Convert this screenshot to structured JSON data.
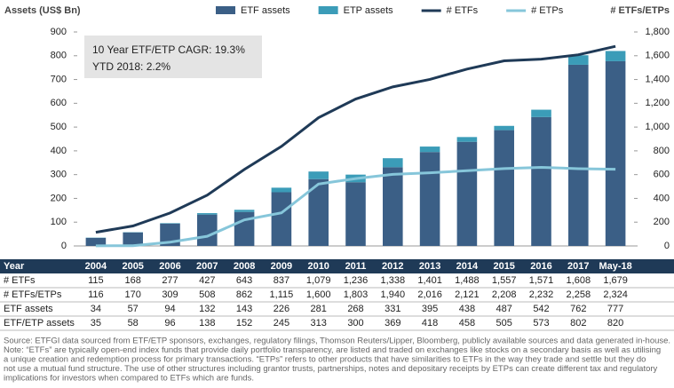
{
  "chart_data": {
    "type": "bar-line",
    "y_title": "Assets (US$ Bn)",
    "y2_title": "# ETFs/ETPs",
    "annotations": [
      "10 Year ETF/ETP CAGR: 19.3%",
      "YTD 2018: 2.2%"
    ],
    "categories": [
      "2004",
      "2005",
      "2006",
      "2007",
      "2008",
      "2009",
      "2010",
      "2011",
      "2012",
      "2013",
      "2014",
      "2015",
      "2016",
      "2017",
      "May-18"
    ],
    "series": [
      {
        "name": "ETF assets",
        "color": "#3b5f86",
        "kind": "bar",
        "values": [
          34,
          57,
          94,
          132,
          143,
          226,
          281,
          268,
          331,
          395,
          438,
          487,
          542,
          762,
          777
        ]
      },
      {
        "name": "ETP assets",
        "color": "#3b9cb8",
        "kind": "bar",
        "values": [
          1,
          1,
          2,
          6,
          9,
          19,
          32,
          32,
          38,
          23,
          20,
          18,
          31,
          40,
          43
        ]
      },
      {
        "name": "# ETFs",
        "color": "#1f3a57",
        "kind": "line",
        "axis": "y2",
        "values": [
          115,
          168,
          277,
          427,
          643,
          837,
          1079,
          1236,
          1338,
          1401,
          1488,
          1557,
          1571,
          1608,
          1679
        ]
      },
      {
        "name": "# ETPs",
        "color": "#86c6da",
        "kind": "line",
        "axis": "y2",
        "values": [
          1,
          2,
          32,
          81,
          219,
          278,
          521,
          567,
          602,
          615,
          633,
          651,
          661,
          650,
          645
        ]
      }
    ],
    "ylim": [
      0,
      900
    ],
    "yticks": [
      0,
      100,
      200,
      300,
      400,
      500,
      600,
      700,
      800,
      900
    ],
    "y2lim": [
      0,
      1800
    ],
    "y2ticks": [
      0,
      200,
      400,
      600,
      800,
      {
        "value": 1000,
        "label": "1,000"
      },
      {
        "value": 1200,
        "label": "1,200"
      },
      {
        "value": 1400,
        "label": "1,400"
      },
      {
        "value": 1600,
        "label": "1,600"
      },
      {
        "value": 1800,
        "label": "1,800"
      }
    ],
    "grid": false,
    "table": {
      "header": "Year",
      "rows": [
        {
          "label": "# ETFs",
          "cells": [
            "115",
            "168",
            "277",
            "427",
            "643",
            "837",
            "1,079",
            "1,236",
            "1,338",
            "1,401",
            "1,488",
            "1,557",
            "1,571",
            "1,608",
            "1,679"
          ]
        },
        {
          "label": "# ETFs/ETPs",
          "cells": [
            "116",
            "170",
            "309",
            "508",
            "862",
            "1,115",
            "1,600",
            "1,803",
            "1,940",
            "2,016",
            "2,121",
            "2,208",
            "2,232",
            "2,258",
            "2,324"
          ]
        },
        {
          "label": "ETF assets",
          "cells": [
            "34",
            "57",
            "94",
            "132",
            "143",
            "226",
            "281",
            "268",
            "331",
            "395",
            "438",
            "487",
            "542",
            "762",
            "777"
          ]
        },
        {
          "label": "ETF/ETP assets",
          "cells": [
            "35",
            "58",
            "96",
            "138",
            "152",
            "245",
            "313",
            "300",
            "369",
            "418",
            "458",
            "505",
            "573",
            "802",
            "820"
          ]
        }
      ]
    },
    "notes": [
      "Source: ETFGI data sourced from ETF/ETP sponsors, exchanges, regulatory filings, Thomson Reuters/Lipper, Bloomberg, publicly available sources and data generated in-house.",
      "Note: “ETFs” are typically open-end index funds that provide daily portfolio transparency, are listed and traded on exchanges like stocks on a secondary basis as well as utilising",
      "a unique creation and redemption process for primary transactions. “ETPs” refers to other products that have similarities to ETFs in the way they trade and settle but they do",
      "not use a mutual fund structure. The use of other structures including grantor trusts, partnerships, notes and depositary receipts by ETPs can create different tax and regulatory",
      "implications for investors when compared to ETFs which are funds."
    ]
  }
}
